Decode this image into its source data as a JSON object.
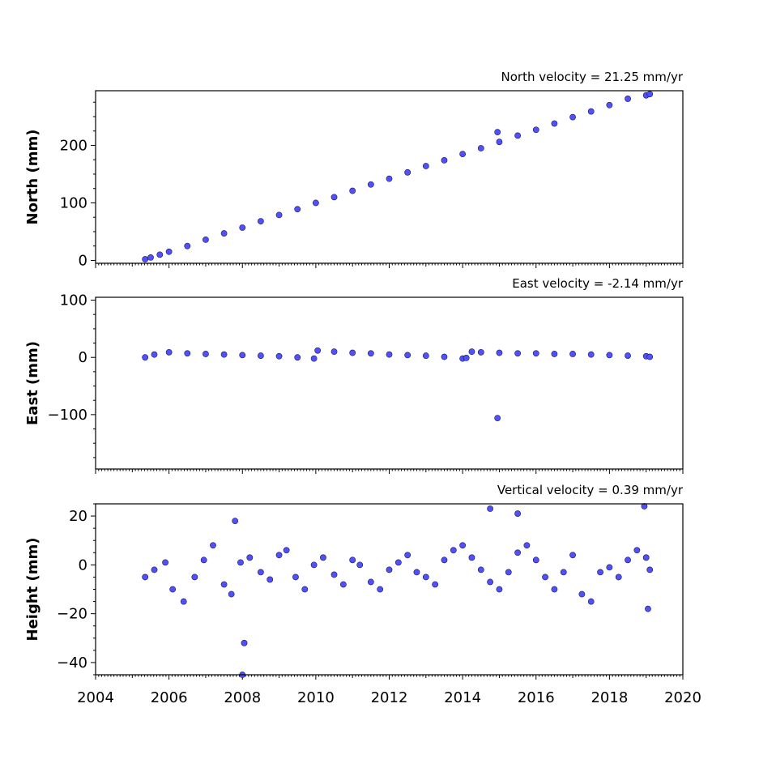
{
  "chart_data": [
    {
      "type": "scatter",
      "title": "North velocity = 21.25 mm/yr",
      "xlabel": "",
      "ylabel": "North (mm)",
      "xlim": [
        2004,
        2020
      ],
      "ylim": [
        -5,
        295
      ],
      "yticks": [
        0,
        100,
        200
      ],
      "ytick_labels": [
        "0",
        "100",
        "200"
      ],
      "show_xtick_labels": false,
      "grid": false,
      "marker_color": "#5050ff",
      "marker_edge": "#1a1a4d",
      "series": [
        {
          "x": [
            2005.35,
            2005.5,
            2005.75,
            2006.0,
            2006.5,
            2007.0,
            2007.5,
            2008.0,
            2008.5,
            2009.0,
            2009.5,
            2010.0,
            2010.5,
            2011.0,
            2011.5,
            2012.0,
            2012.5,
            2013.0,
            2013.5,
            2014.0,
            2014.5,
            2015.0,
            2015.5,
            2016.0,
            2016.5,
            2017.0,
            2017.5,
            2018.0,
            2018.5,
            2019.0,
            2019.1,
            2014.95
          ],
          "y": [
            2,
            5,
            10,
            15,
            25,
            36,
            47,
            57,
            68,
            79,
            89,
            100,
            110,
            121,
            132,
            142,
            153,
            164,
            174,
            185,
            195,
            206,
            217,
            227,
            238,
            249,
            259,
            270,
            281,
            287,
            289,
            223
          ]
        }
      ]
    },
    {
      "type": "scatter",
      "title": "East velocity = -2.14 mm/yr",
      "xlabel": "",
      "ylabel": "East (mm)",
      "xlim": [
        2004,
        2020
      ],
      "ylim": [
        -195,
        105
      ],
      "yticks": [
        -100,
        0,
        100
      ],
      "ytick_labels": [
        "−100",
        "0",
        "100"
      ],
      "show_xtick_labels": false,
      "grid": false,
      "marker_color": "#5050ff",
      "marker_edge": "#1a1a4d",
      "series": [
        {
          "x": [
            2005.35,
            2005.6,
            2006.0,
            2006.5,
            2007.0,
            2007.5,
            2008.0,
            2008.5,
            2009.0,
            2009.5,
            2009.95,
            2010.05,
            2010.5,
            2011.0,
            2011.5,
            2012.0,
            2012.5,
            2013.0,
            2013.5,
            2014.0,
            2014.1,
            2014.25,
            2014.5,
            2015.0,
            2015.5,
            2016.0,
            2016.5,
            2017.0,
            2017.5,
            2018.0,
            2018.5,
            2019.0,
            2019.1,
            2014.95
          ],
          "y": [
            0,
            5,
            9,
            7,
            6,
            5,
            4,
            3,
            2,
            0,
            -2,
            12,
            10,
            8,
            7,
            5,
            4,
            3,
            1,
            -2,
            -1,
            10,
            9,
            8,
            7,
            7,
            6,
            6,
            5,
            4,
            3,
            2,
            1,
            -106
          ]
        }
      ]
    },
    {
      "type": "scatter",
      "title": "Vertical velocity = 0.39 mm/yr",
      "xlabel": "",
      "ylabel": "Height (mm)",
      "xlim": [
        2004,
        2020
      ],
      "ylim": [
        -45,
        25
      ],
      "yticks": [
        -40,
        -20,
        0,
        20
      ],
      "ytick_labels": [
        "−40",
        "−20",
        "0",
        "20"
      ],
      "xticks": [
        2004,
        2006,
        2008,
        2010,
        2012,
        2014,
        2016,
        2018,
        2020
      ],
      "xtick_labels": [
        "2004",
        "2006",
        "2008",
        "2010",
        "2012",
        "2014",
        "2016",
        "2018",
        "2020"
      ],
      "show_xtick_labels": true,
      "grid": false,
      "marker_color": "#5050ff",
      "marker_edge": "#1a1a4d",
      "series": [
        {
          "x": [
            2005.35,
            2005.6,
            2005.9,
            2006.1,
            2006.4,
            2006.7,
            2006.95,
            2007.2,
            2007.5,
            2007.7,
            2007.95,
            2008.2,
            2008.5,
            2008.75,
            2009.0,
            2009.2,
            2009.45,
            2009.7,
            2009.95,
            2010.2,
            2010.5,
            2010.75,
            2011.0,
            2011.2,
            2011.5,
            2011.75,
            2012.0,
            2012.25,
            2012.5,
            2012.75,
            2013.0,
            2013.25,
            2013.5,
            2013.75,
            2014.0,
            2014.25,
            2014.5,
            2014.75,
            2015.0,
            2015.25,
            2015.5,
            2015.75,
            2016.0,
            2016.25,
            2016.5,
            2016.75,
            2017.0,
            2017.25,
            2017.5,
            2017.75,
            2018.0,
            2018.25,
            2018.5,
            2018.75,
            2019.0,
            2019.1,
            2007.8,
            2008.0,
            2014.75,
            2018.95,
            2015.5,
            2008.05,
            2019.05
          ],
          "y": [
            -5,
            -2,
            1,
            -10,
            -15,
            -5,
            2,
            8,
            -8,
            -12,
            1,
            3,
            -3,
            -6,
            4,
            6,
            -5,
            -10,
            0,
            3,
            -4,
            -8,
            2,
            0,
            -7,
            -10,
            -2,
            1,
            4,
            -3,
            -5,
            -8,
            2,
            6,
            8,
            3,
            -2,
            -7,
            -10,
            -3,
            5,
            8,
            2,
            -5,
            -10,
            -3,
            4,
            -12,
            -15,
            -3,
            -1,
            -5,
            2,
            6,
            3,
            -2,
            18,
            -45,
            23,
            24,
            21,
            -32,
            -18
          ]
        }
      ]
    }
  ]
}
